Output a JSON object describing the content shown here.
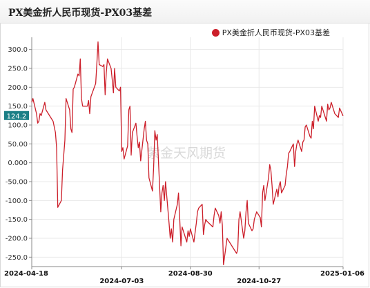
{
  "title": "PX美金折人民币现货-PX03基差",
  "watermark": "紫金天风期货",
  "colors": {
    "series": "#cc1f2a",
    "badge": "#1b7f86",
    "grid": "#e8e8e8"
  },
  "chart_data": {
    "type": "line",
    "title": "PX美金折人民币现货-PX03基差",
    "xlabel": "",
    "ylabel": "",
    "ylim": [
      -275,
      325
    ],
    "yticks": [
      -250,
      -200,
      -150,
      -100,
      -50,
      0,
      50,
      100,
      150,
      200,
      250,
      300
    ],
    "ytick_labels": [
      "-250.0",
      "-200.0",
      "-150.0",
      "-100.0",
      "-50.00",
      "0.000",
      "50.00",
      "100.0",
      "150.0",
      "200.0",
      "250.0",
      "300.0"
    ],
    "x_start": "2024-04-18",
    "x_end": "2025-01-06",
    "xticks": [
      {
        "label": "2024-04-18",
        "date": "2024-04-18",
        "row": 0
      },
      {
        "label": "2024-07-03",
        "date": "2024-07-03",
        "row": 1
      },
      {
        "label": "2024-08-30",
        "date": "2024-08-30",
        "row": 0
      },
      {
        "label": "2024-10-27",
        "date": "2024-10-27",
        "row": 1
      },
      {
        "label": "2025-01-06",
        "date": "2025-01-06",
        "row": 0
      }
    ],
    "last_value_label": "124.2",
    "legend": {
      "position": "top-right"
    },
    "grid": true,
    "series": [
      {
        "name": "PX美金折人民币现货-PX03基差",
        "points": [
          [
            "2024-04-18",
            160
          ],
          [
            "2024-04-19",
            170
          ],
          [
            "2024-04-22",
            130
          ],
          [
            "2024-04-23",
            105
          ],
          [
            "2024-04-24",
            110
          ],
          [
            "2024-04-25",
            130
          ],
          [
            "2024-04-26",
            125
          ],
          [
            "2024-04-29",
            160
          ],
          [
            "2024-04-30",
            140
          ],
          [
            "2024-05-02",
            130
          ],
          [
            "2024-05-06",
            110
          ],
          [
            "2024-05-07",
            95
          ],
          [
            "2024-05-08",
            80
          ],
          [
            "2024-05-09",
            40
          ],
          [
            "2024-05-10",
            -118
          ],
          [
            "2024-05-13",
            -100
          ],
          [
            "2024-05-14",
            -20
          ],
          [
            "2024-05-15",
            20
          ],
          [
            "2024-05-16",
            60
          ],
          [
            "2024-05-17",
            170
          ],
          [
            "2024-05-20",
            140
          ],
          [
            "2024-05-21",
            90
          ],
          [
            "2024-05-22",
            80
          ],
          [
            "2024-05-23",
            195
          ],
          [
            "2024-05-24",
            200
          ],
          [
            "2024-05-27",
            235
          ],
          [
            "2024-05-28",
            230
          ],
          [
            "2024-05-29",
            275
          ],
          [
            "2024-05-30",
            170
          ],
          [
            "2024-05-31",
            150
          ],
          [
            "2024-06-04",
            150
          ],
          [
            "2024-06-05",
            165
          ],
          [
            "2024-06-06",
            130
          ],
          [
            "2024-06-07",
            175
          ],
          [
            "2024-06-11",
            210
          ],
          [
            "2024-06-12",
            262
          ],
          [
            "2024-06-13",
            320
          ],
          [
            "2024-06-14",
            260
          ],
          [
            "2024-06-17",
            255
          ],
          [
            "2024-06-18",
            260
          ],
          [
            "2024-06-19",
            180
          ],
          [
            "2024-06-20",
            240
          ],
          [
            "2024-06-21",
            275
          ],
          [
            "2024-06-24",
            250
          ],
          [
            "2024-06-25",
            220
          ],
          [
            "2024-06-26",
            185
          ],
          [
            "2024-06-27",
            250
          ],
          [
            "2024-06-28",
            200
          ],
          [
            "2024-07-01",
            190
          ],
          [
            "2024-07-02",
            200
          ],
          [
            "2024-07-03",
            30
          ],
          [
            "2024-07-04",
            40
          ],
          [
            "2024-07-05",
            10
          ],
          [
            "2024-07-08",
            45
          ],
          [
            "2024-07-09",
            140
          ],
          [
            "2024-07-10",
            150
          ],
          [
            "2024-07-11",
            20
          ],
          [
            "2024-07-12",
            80
          ],
          [
            "2024-07-15",
            105
          ],
          [
            "2024-07-16",
            70
          ],
          [
            "2024-07-17",
            40
          ],
          [
            "2024-07-18",
            55
          ],
          [
            "2024-07-19",
            5
          ],
          [
            "2024-07-22",
            90
          ],
          [
            "2024-07-23",
            110
          ],
          [
            "2024-07-24",
            60
          ],
          [
            "2024-07-25",
            50
          ],
          [
            "2024-07-26",
            -40
          ],
          [
            "2024-07-29",
            -75
          ],
          [
            "2024-07-30",
            -10
          ],
          [
            "2024-07-31",
            85
          ],
          [
            "2024-08-01",
            60
          ],
          [
            "2024-08-02",
            75
          ],
          [
            "2024-08-05",
            -130
          ],
          [
            "2024-08-06",
            -80
          ],
          [
            "2024-08-07",
            -60
          ],
          [
            "2024-08-08",
            -100
          ],
          [
            "2024-08-09",
            -50
          ],
          [
            "2024-08-12",
            -160
          ],
          [
            "2024-08-13",
            -200
          ],
          [
            "2024-08-14",
            -175
          ],
          [
            "2024-08-15",
            -210
          ],
          [
            "2024-08-16",
            -150
          ],
          [
            "2024-08-19",
            -110
          ],
          [
            "2024-08-20",
            -80
          ],
          [
            "2024-08-21",
            -150
          ],
          [
            "2024-08-22",
            -220
          ],
          [
            "2024-08-23",
            -170
          ],
          [
            "2024-08-26",
            -200
          ],
          [
            "2024-08-27",
            -210
          ],
          [
            "2024-08-28",
            -180
          ],
          [
            "2024-08-29",
            -195
          ],
          [
            "2024-08-30",
            -175
          ],
          [
            "2024-09-02",
            -210
          ],
          [
            "2024-09-03",
            -185
          ],
          [
            "2024-09-04",
            -160
          ],
          [
            "2024-09-05",
            -130
          ],
          [
            "2024-09-06",
            -120
          ],
          [
            "2024-09-09",
            -110
          ],
          [
            "2024-09-10",
            -190
          ],
          [
            "2024-09-11",
            -165
          ],
          [
            "2024-09-12",
            -150
          ],
          [
            "2024-09-13",
            -155
          ],
          [
            "2024-09-18",
            -170
          ],
          [
            "2024-09-19",
            -140
          ],
          [
            "2024-09-20",
            -120
          ],
          [
            "2024-09-23",
            -140
          ],
          [
            "2024-09-24",
            -160
          ],
          [
            "2024-09-25",
            -130
          ],
          [
            "2024-09-26",
            -165
          ],
          [
            "2024-09-27",
            -270
          ],
          [
            "2024-09-30",
            -200
          ],
          [
            "2024-10-08",
            -240
          ],
          [
            "2024-10-09",
            -230
          ],
          [
            "2024-10-10",
            -150
          ],
          [
            "2024-10-11",
            -130
          ],
          [
            "2024-10-14",
            -200
          ],
          [
            "2024-10-15",
            -180
          ],
          [
            "2024-10-16",
            -130
          ],
          [
            "2024-10-17",
            -100
          ],
          [
            "2024-10-18",
            -160
          ],
          [
            "2024-10-21",
            -180
          ],
          [
            "2024-10-22",
            -175
          ],
          [
            "2024-10-23",
            -150
          ],
          [
            "2024-10-24",
            -140
          ],
          [
            "2024-10-25",
            -130
          ],
          [
            "2024-10-28",
            -145
          ],
          [
            "2024-10-29",
            -170
          ],
          [
            "2024-10-30",
            -80
          ],
          [
            "2024-10-31",
            -60
          ],
          [
            "2024-11-01",
            -100
          ],
          [
            "2024-11-04",
            -40
          ],
          [
            "2024-11-05",
            -5
          ],
          [
            "2024-11-06",
            -20
          ],
          [
            "2024-11-07",
            -60
          ],
          [
            "2024-11-08",
            -110
          ],
          [
            "2024-11-11",
            -70
          ],
          [
            "2024-11-12",
            -90
          ],
          [
            "2024-11-13",
            -60
          ],
          [
            "2024-11-14",
            -50
          ],
          [
            "2024-11-15",
            -80
          ],
          [
            "2024-11-18",
            -60
          ],
          [
            "2024-11-19",
            -30
          ],
          [
            "2024-11-20",
            -10
          ],
          [
            "2024-11-21",
            25
          ],
          [
            "2024-11-22",
            30
          ],
          [
            "2024-11-25",
            50
          ],
          [
            "2024-11-26",
            -10
          ],
          [
            "2024-11-27",
            30
          ],
          [
            "2024-11-28",
            50
          ],
          [
            "2024-11-29",
            60
          ],
          [
            "2024-12-02",
            30
          ],
          [
            "2024-12-03",
            55
          ],
          [
            "2024-12-04",
            60
          ],
          [
            "2024-12-05",
            95
          ],
          [
            "2024-12-06",
            100
          ],
          [
            "2024-12-09",
            70
          ],
          [
            "2024-12-10",
            65
          ],
          [
            "2024-12-11",
            110
          ],
          [
            "2024-12-12",
            90
          ],
          [
            "2024-12-13",
            150
          ],
          [
            "2024-12-16",
            110
          ],
          [
            "2024-12-17",
            125
          ],
          [
            "2024-12-18",
            120
          ],
          [
            "2024-12-19",
            150
          ],
          [
            "2024-12-20",
            140
          ],
          [
            "2024-12-23",
            110
          ],
          [
            "2024-12-24",
            155
          ],
          [
            "2024-12-25",
            140
          ],
          [
            "2024-12-26",
            145
          ],
          [
            "2024-12-27",
            160
          ],
          [
            "2024-12-30",
            130
          ],
          [
            "2025-01-02",
            120
          ],
          [
            "2025-01-03",
            145
          ],
          [
            "2025-01-06",
            124.2
          ]
        ]
      }
    ]
  }
}
